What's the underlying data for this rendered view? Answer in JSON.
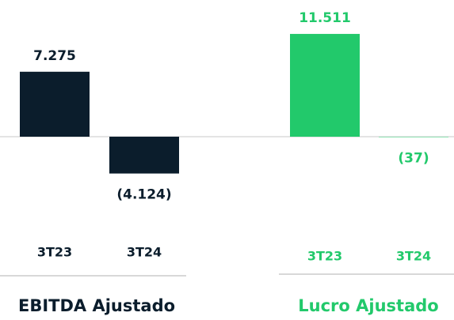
{
  "chart_data": [
    {
      "type": "bar",
      "title": "EBITDA Ajustado",
      "categories": [
        "3T23",
        "3T24"
      ],
      "values": [
        7275,
        -4124
      ],
      "value_labels": [
        "7.275",
        "(4.124)"
      ],
      "color": "#0b1d2c",
      "ylim": [
        -5000,
        12000
      ]
    },
    {
      "type": "bar",
      "title": "Lucro Ajustado",
      "categories": [
        "3T23",
        "3T24"
      ],
      "values": [
        11511,
        -37
      ],
      "value_labels": [
        "11.511",
        "(37)"
      ],
      "color": "#22c96b",
      "ylim": [
        -5000,
        12000
      ]
    }
  ]
}
